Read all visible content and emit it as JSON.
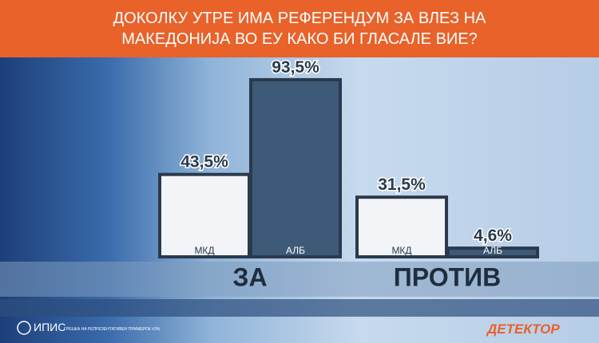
{
  "chart_data": {
    "type": "bar",
    "title": "ДОКОЛКУ УТРЕ ИМА РЕФЕРЕНДУМ ЗА ВЛЕЗ НА МАКЕДОНИЈА ВО ЕУ КАКО БИ ГЛАСАЛЕ ВИЕ?",
    "categories": [
      "ЗА",
      "ПРОТИВ"
    ],
    "series": [
      {
        "name": "МКД",
        "color": "#f2f4f7",
        "values": [
          43.5,
          31.5
        ],
        "value_labels": [
          "43,5%",
          "31,5%"
        ]
      },
      {
        "name": "АЛБ",
        "color": "#3d5a78",
        "values": [
          93.5,
          4.6
        ],
        "value_labels": [
          "93,5%",
          "4,6%"
        ]
      }
    ]
  },
  "footer": {
    "source": "ИПИС",
    "note": "ГРЕШКА НА РЕПРЕЗЕНТАТИВЕН ПРИМЕРОК ±3%",
    "brand": "ДЕТЕКТОР"
  }
}
